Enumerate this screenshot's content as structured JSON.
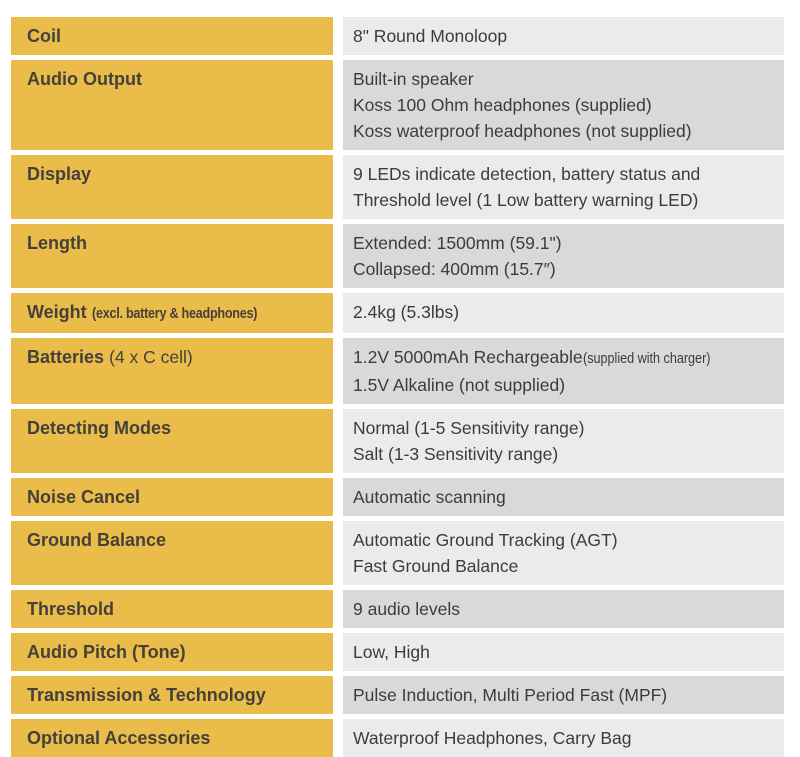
{
  "colors": {
    "label_bg": "#eabd4b",
    "value_bg_light": "#ebebeb",
    "value_bg_dark": "#d9d9db",
    "label_text": "#45403a",
    "value_text": "#3c3c3c",
    "gap": "#ffffff"
  },
  "table": {
    "rows": [
      {
        "label": "Coil",
        "shade": "light",
        "lines": [
          {
            "text": "8\" Round Monoloop"
          }
        ]
      },
      {
        "label": "Audio Output",
        "shade": "dark",
        "lines": [
          {
            "text": "Built-in speaker"
          },
          {
            "text": "Koss 100 Ohm headphones (supplied)"
          },
          {
            "text": "Koss waterproof headphones (not supplied)"
          }
        ]
      },
      {
        "label": "Display",
        "shade": "light",
        "lines": [
          {
            "text": "9 LEDs indicate detection, battery status and"
          },
          {
            "text": "Threshold level (1 Low battery warning LED)"
          }
        ]
      },
      {
        "label": "Length",
        "shade": "dark",
        "lines": [
          {
            "text": "Extended: 1500mm (59.1\")"
          },
          {
            "text": "Collapsed: 400mm (15.7″)"
          }
        ]
      },
      {
        "label": "Weight",
        "label_note": "(excl. battery & headphones)",
        "label_note_style": "condensed-bold",
        "shade": "light",
        "lines": [
          {
            "text": "2.4kg (5.3lbs)"
          }
        ]
      },
      {
        "label": "Batteries",
        "label_note": "(4 x C cell)",
        "label_note_style": "regular",
        "shade": "dark",
        "lines": [
          {
            "text": "1.2V 5000mAh Rechargeable",
            "note": "(supplied with charger)"
          },
          {
            "text": "1.5V Alkaline (not supplied)"
          }
        ]
      },
      {
        "label": "Detecting Modes",
        "shade": "light",
        "lines": [
          {
            "text": "Normal (1-5 Sensitivity range)"
          },
          {
            "text": "Salt (1-3 Sensitivity range)"
          }
        ]
      },
      {
        "label": "Noise Cancel",
        "shade": "dark",
        "lines": [
          {
            "text": "Automatic scanning"
          }
        ]
      },
      {
        "label": "Ground Balance",
        "shade": "light",
        "lines": [
          {
            "text": "Automatic Ground Tracking (AGT)"
          },
          {
            "text": "Fast Ground Balance"
          }
        ]
      },
      {
        "label": "Threshold",
        "shade": "dark",
        "lines": [
          {
            "text": "9 audio levels"
          }
        ]
      },
      {
        "label": "Audio Pitch (Tone)",
        "shade": "light",
        "lines": [
          {
            "text": "Low, High"
          }
        ]
      },
      {
        "label": "Transmission & Technology",
        "shade": "dark",
        "lines": [
          {
            "text": "Pulse Induction, Multi Period Fast (MPF)"
          }
        ]
      },
      {
        "label": "Optional Accessories",
        "shade": "light",
        "lines": [
          {
            "text": "Waterproof Headphones, Carry Bag"
          }
        ]
      }
    ]
  }
}
